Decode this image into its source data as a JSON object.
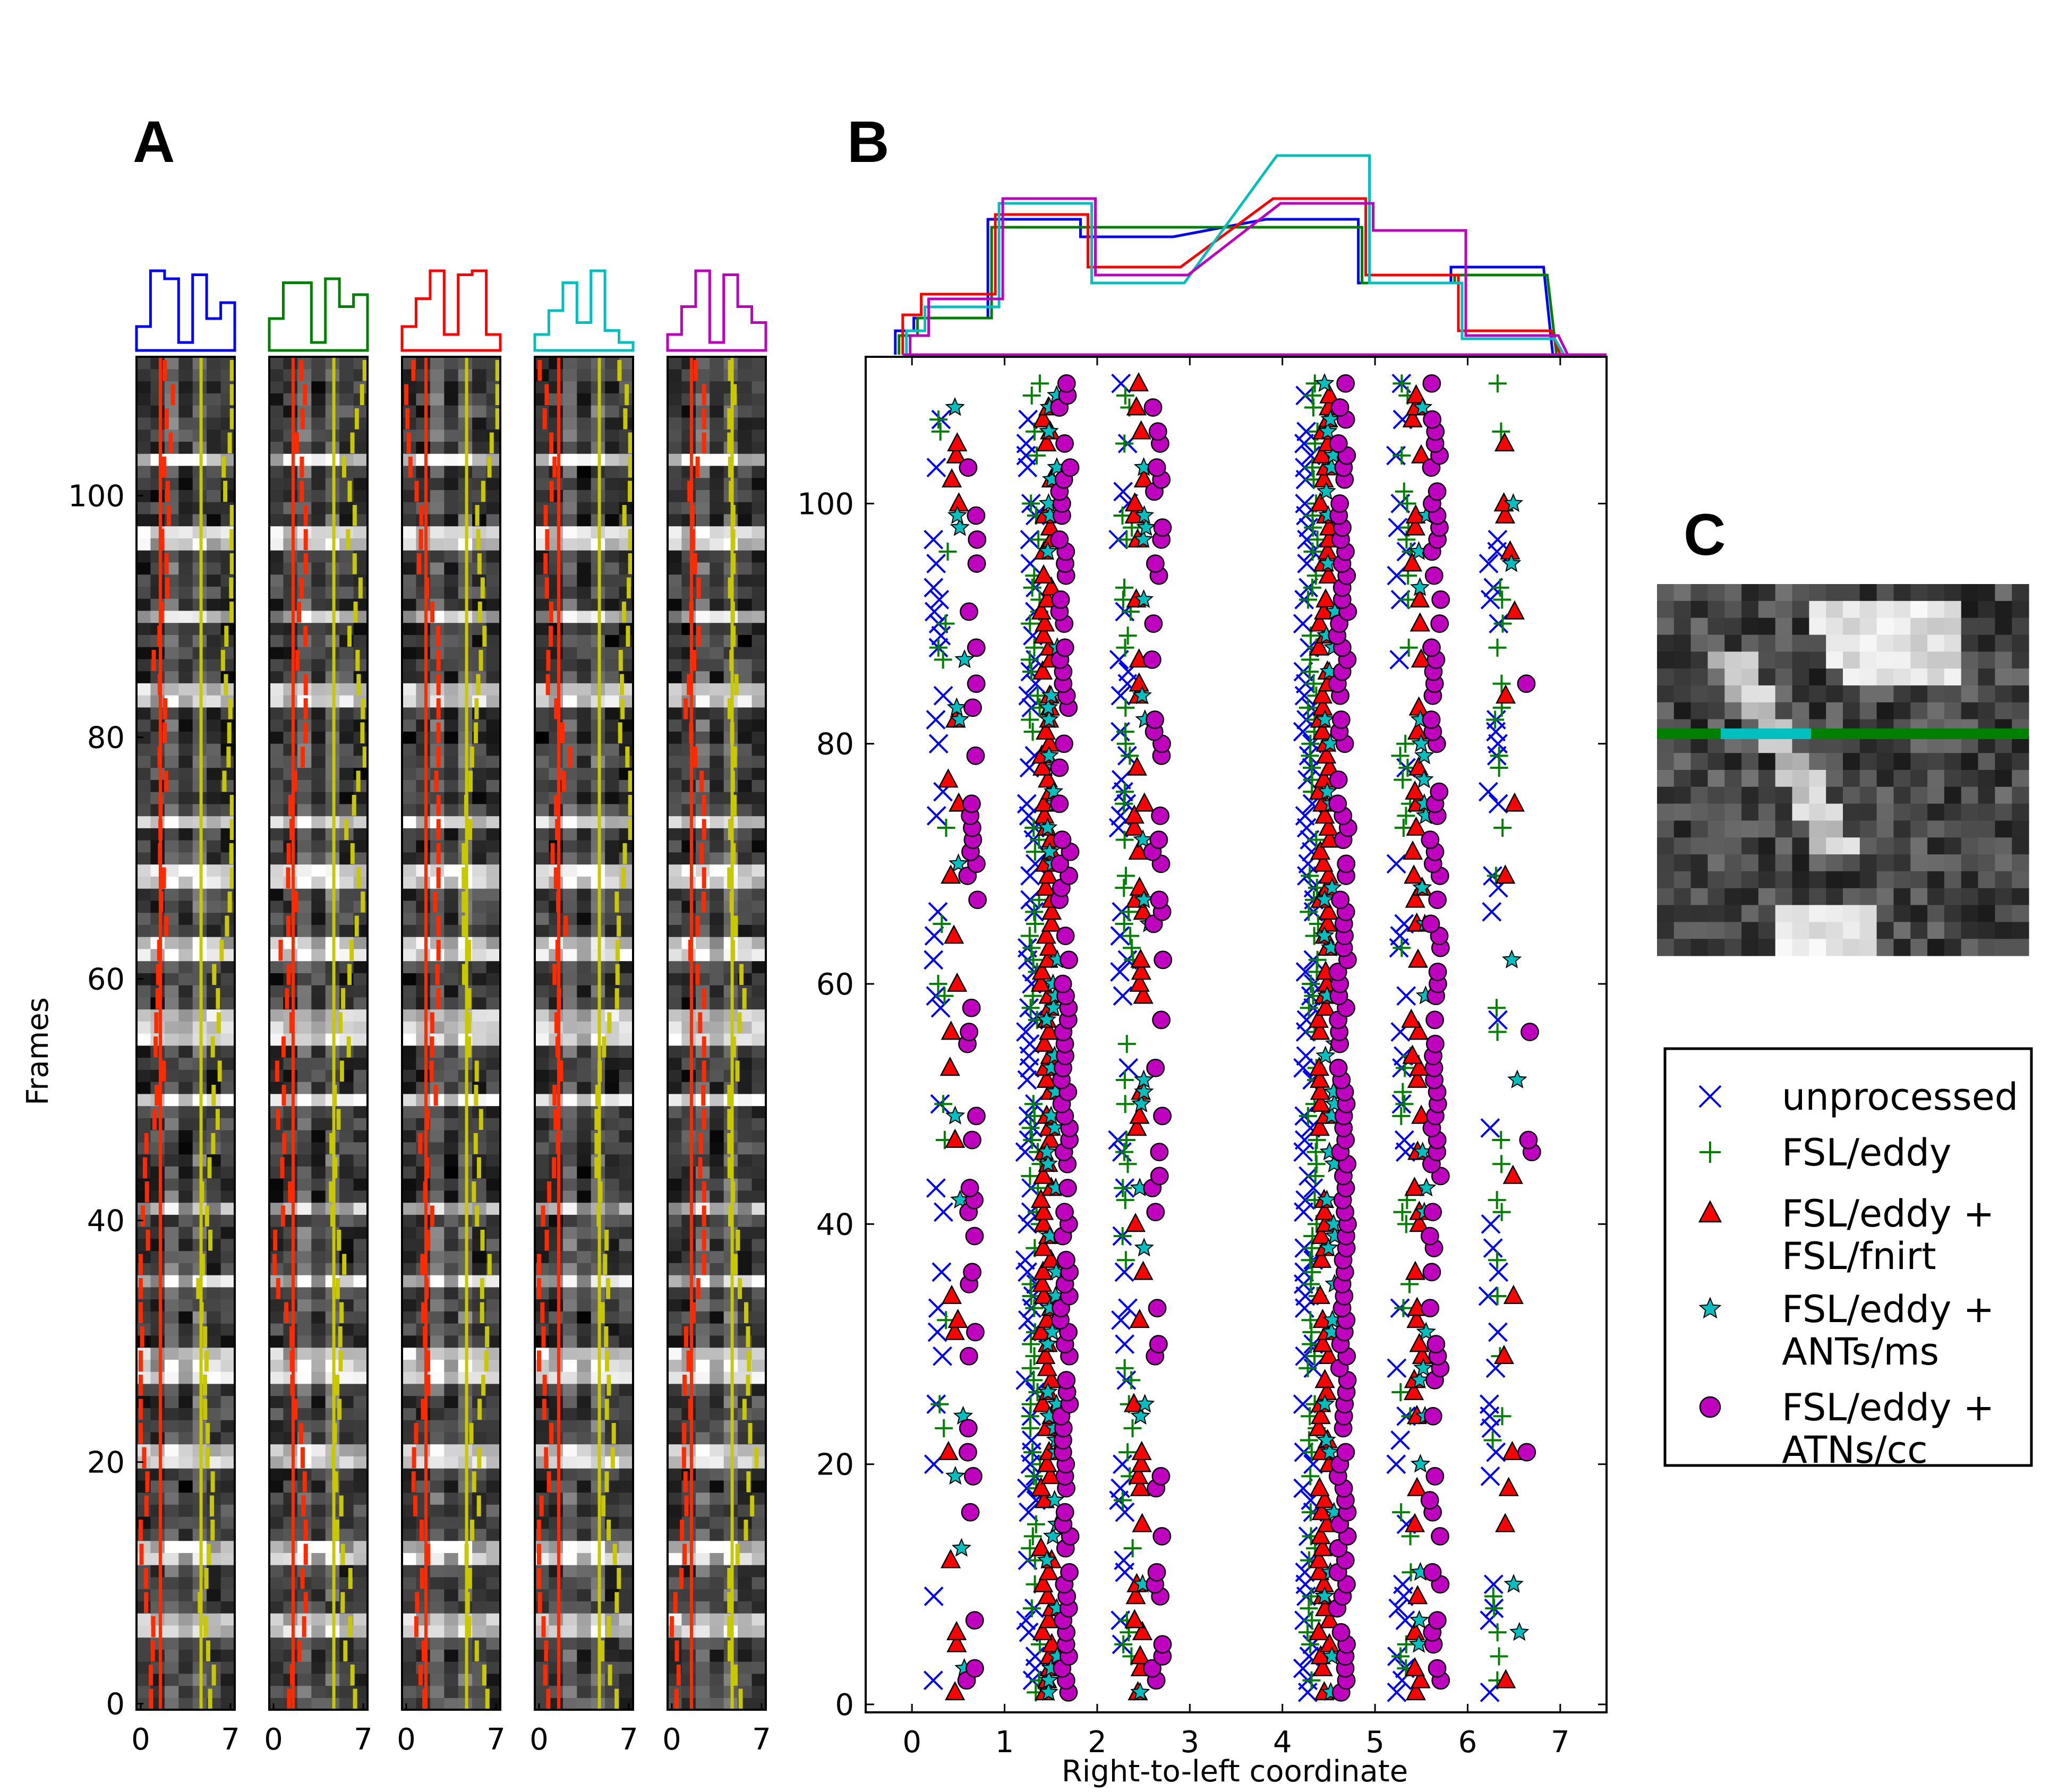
{
  "panels": {
    "a_label": "A",
    "b_label": "B",
    "c_label": "C"
  },
  "colors": {
    "unprocessed": "#0000ff",
    "fsl_eddy": "#008000",
    "fnirt": "#ff0000",
    "ants_ms": "#00bfbf",
    "ants_cc": "#bf00bf",
    "red_line": "#ff2a00",
    "yellow_line": "#c8c800"
  },
  "chart_data": [
    {
      "type": "heatmap",
      "panel": "A",
      "ylabel": "Frames",
      "xlabel": "",
      "xticks": [
        "0",
        "7"
      ],
      "yticks": [
        "0",
        "20",
        "40",
        "60",
        "80",
        "100"
      ],
      "xlim": [
        0,
        7
      ],
      "ylim": [
        0,
        111
      ],
      "strips": [
        {
          "method": "unprocessed",
          "color": "#0000ff",
          "hist": [
            0.3,
            1.0,
            0.9,
            0.1,
            0.95,
            0.4,
            0.6
          ]
        },
        {
          "method": "FSL/eddy",
          "color": "#008000",
          "hist": [
            0.4,
            0.85,
            0.85,
            0.1,
            0.9,
            0.55,
            0.7
          ]
        },
        {
          "method": "FSL/eddy + FSL/fnirt",
          "color": "#ff0000",
          "hist": [
            0.3,
            0.65,
            1.0,
            0.2,
            0.95,
            1.0,
            0.2
          ]
        },
        {
          "method": "FSL/eddy + ANTs/ms",
          "color": "#00bfbf",
          "hist": [
            0.2,
            0.5,
            0.85,
            0.35,
            1.0,
            0.25,
            0.1
          ]
        },
        {
          "method": "FSL/eddy + ATNs/cc",
          "color": "#bf00bf",
          "hist": [
            0.2,
            0.55,
            1.0,
            0.1,
            0.95,
            0.55,
            0.35
          ]
        }
      ]
    },
    {
      "type": "scatter",
      "panel": "B",
      "xlabel": "Right-to-left coordinate",
      "ylabel": "",
      "xlim": [
        -0.5,
        7.5
      ],
      "ylim": [
        0,
        112
      ],
      "xticks": [
        0,
        1,
        2,
        3,
        4,
        5,
        6,
        7
      ],
      "yticks": [
        0,
        20,
        40,
        60,
        80,
        100
      ],
      "columns": [
        0,
        1,
        2,
        4,
        5,
        6
      ],
      "series": [
        {
          "name": "unprocessed",
          "marker": "x",
          "color": "#0000ff",
          "offset": -0.17,
          "density": [
            0.2,
            0.6,
            0.45,
            0.75,
            0.35,
            0.3
          ]
        },
        {
          "name": "FSL/eddy",
          "marker": "+",
          "color": "#008000",
          "offset": -0.12,
          "density": [
            0.15,
            0.55,
            0.4,
            0.7,
            0.3,
            0.25
          ]
        },
        {
          "name": "FSL/eddy + FSL/fnirt",
          "marker": "triangle",
          "color": "#ff0000",
          "offset": 0.0,
          "density": [
            0.3,
            0.85,
            0.35,
            0.85,
            0.45,
            0.1
          ]
        },
        {
          "name": "FSL/eddy + ANTs/ms",
          "marker": "star",
          "color": "#00bfbf",
          "offset": 0.06,
          "density": [
            0.1,
            0.4,
            0.2,
            0.35,
            0.2,
            0.05
          ]
        },
        {
          "name": "FSL/eddy + ATNs/cc",
          "marker": "circle",
          "color": "#bf00bf",
          "offset": 0.2,
          "density": [
            0.3,
            0.8,
            0.35,
            0.85,
            0.55,
            0.05
          ]
        }
      ],
      "histograms": [
        {
          "name": "unprocessed",
          "color": "#0000ff",
          "bins": [
            [
              -0.1,
              0.1,
              0.15
            ],
            [
              0.1,
              0.9,
              0.23
            ],
            [
              0.9,
              1.9,
              0.85
            ],
            [
              1.9,
              2.9,
              0.74
            ],
            [
              3.9,
              4.9,
              0.85
            ],
            [
              4.9,
              5.9,
              0.45
            ],
            [
              5.9,
              6.9,
              0.55
            ]
          ]
        },
        {
          "name": "FSL/eddy",
          "color": "#008000",
          "bins": [
            [
              -0.1,
              0.1,
              0.12
            ],
            [
              0.1,
              0.9,
              0.23
            ],
            [
              0.9,
              1.9,
              0.8
            ],
            [
              1.9,
              2.9,
              0.8
            ],
            [
              3.9,
              4.9,
              0.8
            ],
            [
              4.9,
              5.9,
              0.45
            ],
            [
              5.9,
              6.9,
              0.5
            ]
          ]
        },
        {
          "name": "FSL/eddy + FSL/fnirt",
          "color": "#ff0000",
          "bins": [
            [
              -0.1,
              0.1,
              0.25
            ],
            [
              0.1,
              0.9,
              0.38
            ],
            [
              0.9,
              1.9,
              0.88
            ],
            [
              1.9,
              2.9,
              0.55
            ],
            [
              3.9,
              4.9,
              0.98
            ],
            [
              4.9,
              5.9,
              0.5
            ],
            [
              5.9,
              6.9,
              0.15
            ]
          ]
        },
        {
          "name": "FSL/eddy + ANTs/ms",
          "color": "#00bfbf",
          "bins": [
            [
              -0.1,
              0.1,
              0.15
            ],
            [
              0.1,
              0.9,
              0.3
            ],
            [
              0.9,
              1.9,
              0.95
            ],
            [
              1.9,
              2.9,
              0.45
            ],
            [
              3.9,
              4.9,
              1.25
            ],
            [
              4.9,
              5.9,
              0.45
            ],
            [
              5.9,
              6.9,
              0.1
            ]
          ]
        },
        {
          "name": "FSL/eddy + ATNs/cc",
          "color": "#bf00bf",
          "bins": [
            [
              -0.1,
              0.1,
              0.12
            ],
            [
              0.1,
              0.9,
              0.35
            ],
            [
              0.9,
              1.9,
              0.98
            ],
            [
              1.9,
              2.9,
              0.5
            ],
            [
              3.9,
              4.9,
              0.95
            ],
            [
              4.9,
              5.9,
              0.78
            ],
            [
              5.9,
              6.9,
              0.12
            ]
          ]
        }
      ]
    }
  ],
  "legend": {
    "items": [
      {
        "marker": "x",
        "color": "#0000ff",
        "line1": "unprocessed",
        "line2": ""
      },
      {
        "marker": "+",
        "color": "#008000",
        "line1": "FSL/eddy",
        "line2": ""
      },
      {
        "marker": "triangle",
        "color": "#ff0000",
        "line1": "FSL/eddy +",
        "line2": "FSL/fnirt"
      },
      {
        "marker": "star",
        "color": "#00bfbf",
        "line1": "FSL/eddy +",
        "line2": "ANTs/ms"
      },
      {
        "marker": "circle",
        "color": "#bf00bf",
        "line1": "FSL/eddy +",
        "line2": "ATNs/cc"
      }
    ]
  }
}
